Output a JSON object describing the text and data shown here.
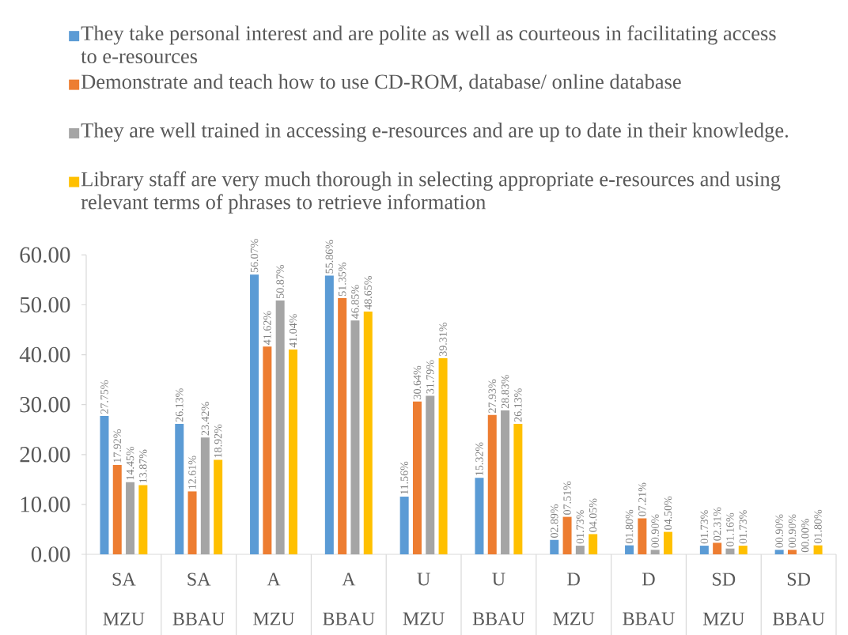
{
  "chart_data": {
    "type": "bar",
    "categories": [
      "SA MZU",
      "SA BBAU",
      "A MZU",
      "A BBAU",
      "U MZU",
      "U BBAU",
      "D MZU",
      "D BBAU",
      "SD MZU",
      "SD BBAU"
    ],
    "series": [
      {
        "name": "They take personal interest and are polite as well as courteous in facilitating access to e-resources",
        "color": "#5b9bd5",
        "values": [
          27.75,
          26.13,
          56.07,
          55.86,
          11.56,
          15.32,
          2.89,
          1.8,
          1.73,
          0.9
        ],
        "value_labels": [
          "27.75%",
          "26.13%",
          "56.07%",
          "55.86%",
          "11.56%",
          "15.32%",
          "02.89%",
          "01.80%",
          "01.73%",
          "00.90%"
        ]
      },
      {
        "name": "Demonstrate and teach how to use CD-ROM, database/ online database",
        "color": "#ed7d31",
        "values": [
          17.92,
          12.61,
          41.62,
          51.35,
          30.64,
          27.93,
          7.51,
          7.21,
          2.31,
          0.9
        ],
        "value_labels": [
          "17.92%",
          "12.61%",
          "41.62%",
          "51.35%",
          "30.64%",
          "27.93%",
          "07.51%",
          "07.21%",
          "02.31%",
          "00.90%"
        ]
      },
      {
        "name": "They are well trained in accessing e-resources and are up to date in their knowledge.",
        "color": "#a5a5a5",
        "values": [
          14.45,
          23.42,
          50.87,
          46.85,
          31.79,
          28.83,
          1.73,
          0.9,
          1.16,
          0.0
        ],
        "value_labels": [
          "14.45%",
          "23.42%",
          "50.87%",
          "46.85%",
          "31.79%",
          "28.83%",
          "01.73%",
          "00.90%",
          "01.16%",
          "00.00%"
        ]
      },
      {
        "name": "Library staff are very much thorough in selecting appropriate e-resources and using relevant terms of phrases to retrieve information",
        "color": "#ffc000",
        "values": [
          13.87,
          18.92,
          41.04,
          48.65,
          39.31,
          26.13,
          4.05,
          4.5,
          1.73,
          1.8
        ],
        "value_labels": [
          "13.87%",
          "18.92%",
          "41.04%",
          "48.65%",
          "39.31%",
          "26.13%",
          "04.05%",
          "04.50%",
          "01.73%",
          "01.80%"
        ]
      }
    ],
    "ylim": [
      0,
      60
    ],
    "yticks": [
      {
        "value": 0,
        "label": "0.00"
      },
      {
        "value": 10,
        "label": "10.00"
      },
      {
        "value": 20,
        "label": "20.00"
      },
      {
        "value": 30,
        "label": "30.00"
      },
      {
        "value": 40,
        "label": "40.00"
      },
      {
        "value": 50,
        "label": "50.00"
      },
      {
        "value": 60,
        "label": "60.00"
      }
    ],
    "legend": "top"
  }
}
